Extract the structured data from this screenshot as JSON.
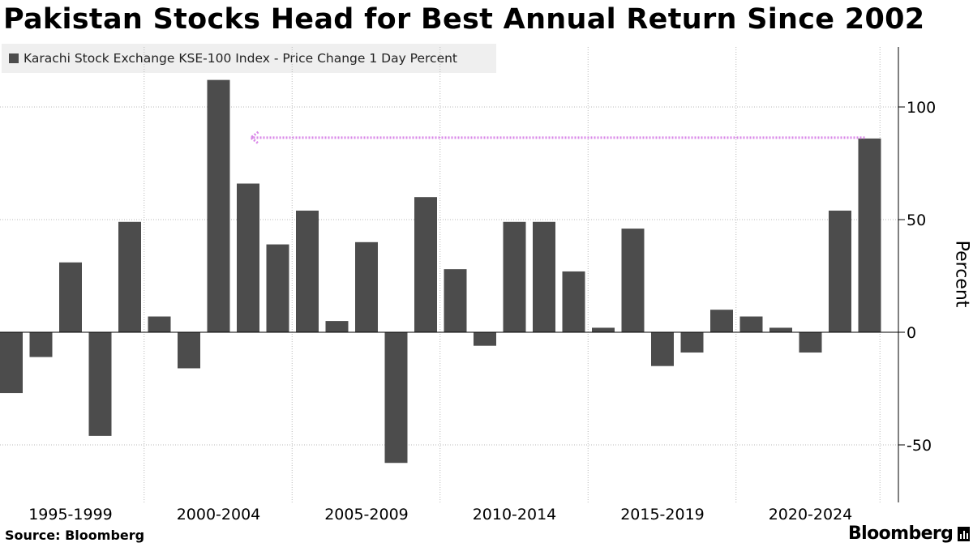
{
  "chart_data": {
    "type": "bar",
    "title": "Pakistan Stocks Head for Best Annual Return Since 2002",
    "series": [
      {
        "name": "Karachi Stock Exchange KSE-100 Index - Price Change 1 Day Percent",
        "color": "#4c4c4c",
        "x": [
          1995,
          1996,
          1997,
          1998,
          1999,
          2000,
          2001,
          2002,
          2003,
          2004,
          2005,
          2006,
          2007,
          2008,
          2009,
          2010,
          2011,
          2012,
          2013,
          2014,
          2015,
          2016,
          2017,
          2018,
          2019,
          2020,
          2021,
          2022,
          2023,
          2024
        ],
        "values": [
          -27,
          -11,
          31,
          -46,
          49,
          7,
          -16,
          112,
          66,
          39,
          54,
          5,
          40,
          -58,
          60,
          28,
          -6,
          49,
          49,
          27,
          2,
          46,
          -15,
          -9,
          10,
          7,
          2,
          -9,
          54,
          86
        ]
      }
    ],
    "categories": [
      "1995-1999",
      "2000-2004",
      "2005-2009",
      "2010-2014",
      "2015-2019",
      "2020-2024"
    ],
    "ylabel": "Percent",
    "ylim": [
      -75,
      127
    ],
    "yticks": [
      100,
      50,
      0,
      -50
    ],
    "grid": true,
    "legend_position": "top-left",
    "annotation": {
      "type": "dotted-arrow",
      "value": 86,
      "from_year": 2024,
      "to_year": 2002,
      "color": "#d988e8"
    },
    "axis_side": "right"
  },
  "source": "Source: Bloomberg",
  "brand": "Bloomberg"
}
